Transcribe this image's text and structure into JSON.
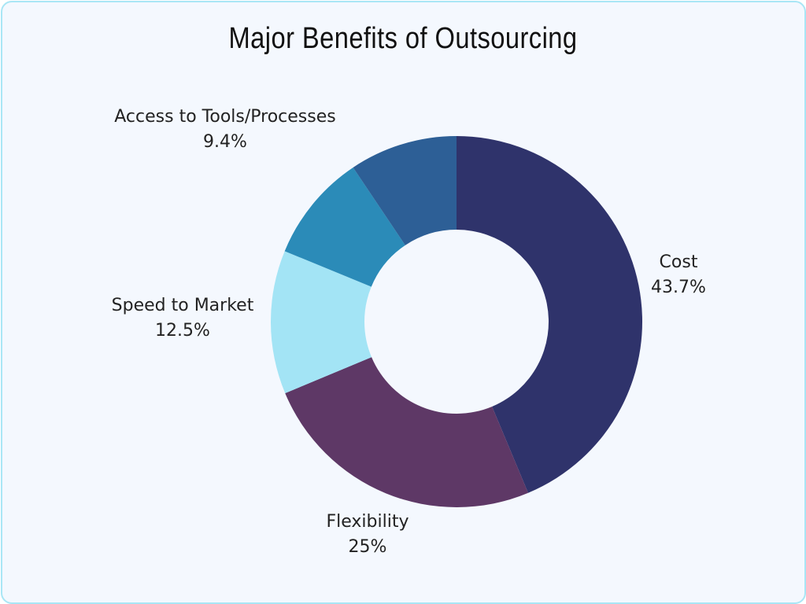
{
  "chart_data": {
    "type": "pie",
    "donut": true,
    "title": "Major Benefits of Outsourcing",
    "start": "top, clockwise",
    "slices": [
      {
        "label": "Cost",
        "value": 43.7,
        "display": "43.7%",
        "color": "#2f336b"
      },
      {
        "label": "Flexibility",
        "value": 25,
        "display": "25%",
        "color": "#5e3866"
      },
      {
        "label": "Speed to Market",
        "value": 12.5,
        "display": "12.5%",
        "color": "#a3e4f5"
      },
      {
        "label": "",
        "value": 9.4,
        "display": "",
        "color": "#2b8bb8"
      },
      {
        "label": "Access to Tools/Processes",
        "value": 9.4,
        "display": "9.4%",
        "color": "#2d5f96"
      }
    ]
  }
}
